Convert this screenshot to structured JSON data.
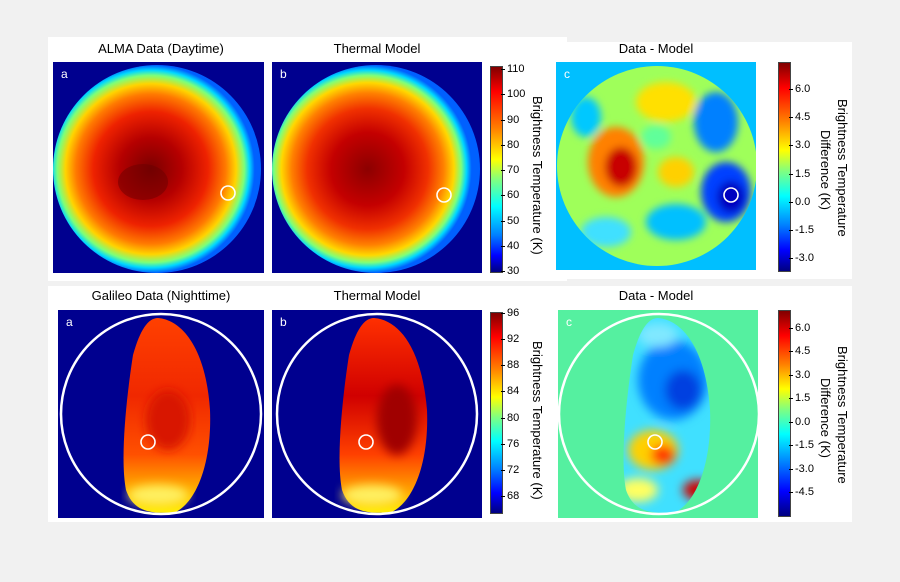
{
  "top_row": {
    "title_a": "ALMA Data (Daytime)",
    "title_b": "Thermal Model",
    "title_c": "Data - Model",
    "label_a": "a",
    "label_b": "b",
    "label_c": "c",
    "colorbar1": {
      "label": "Brightness Temperature (K)",
      "ticks": [
        "110",
        "100",
        "90",
        "80",
        "70",
        "60",
        "50",
        "40",
        "30"
      ]
    },
    "colorbar2": {
      "label_line1": "Brightness Temperature",
      "label_line2": "Difference (K)",
      "ticks": [
        "6.0",
        "4.5",
        "3.0",
        "1.5",
        "0.0",
        "-1.5",
        "-3.0"
      ]
    }
  },
  "bottom_row": {
    "title_a": "Galileo Data (Nighttime)",
    "title_b": "Thermal Model",
    "title_c": "Data - Model",
    "label_a": "a",
    "label_b": "b",
    "label_c": "c",
    "colorbar1": {
      "label": "Brightness Temperature (K)",
      "ticks": [
        "96",
        "92",
        "88",
        "84",
        "80",
        "76",
        "72",
        "68"
      ]
    },
    "colorbar2": {
      "label_line1": "Brightness Temperature",
      "label_line2": "Difference (K)",
      "ticks": [
        "6.0",
        "4.5",
        "3.0",
        "1.5",
        "0.0",
        "-1.5",
        "-3.0",
        "-4.5"
      ]
    }
  },
  "colors": {
    "bg_navy": "#00008f",
    "cyan_bg": "#00bfff",
    "mint_bg": "#55f0a0"
  }
}
